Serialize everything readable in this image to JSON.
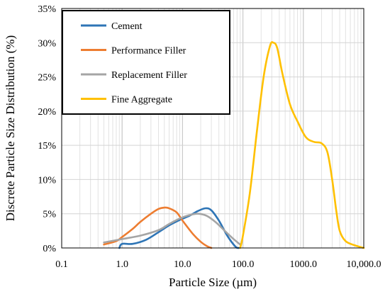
{
  "chart_data": {
    "type": "line",
    "title": "",
    "xlabel": "Particle Size (µm)",
    "ylabel": "Discrete Particle Size Distribution (%)",
    "x_scale": "log",
    "xlim": [
      0.1,
      10000
    ],
    "ylim": [
      0,
      35
    ],
    "grid": true,
    "legend_position": "top-left",
    "x_ticks": [
      {
        "value": 0.1,
        "label": "0.1"
      },
      {
        "value": 1,
        "label": "1.0"
      },
      {
        "value": 10,
        "label": "10.0"
      },
      {
        "value": 100,
        "label": "100.0"
      },
      {
        "value": 1000,
        "label": "1000.0"
      },
      {
        "value": 10000,
        "label": "10,000.0"
      }
    ],
    "y_ticks": [
      {
        "value": 0,
        "label": "0%"
      },
      {
        "value": 5,
        "label": "5%"
      },
      {
        "value": 10,
        "label": "10%"
      },
      {
        "value": 15,
        "label": "15%"
      },
      {
        "value": 20,
        "label": "20%"
      },
      {
        "value": 25,
        "label": "25%"
      },
      {
        "value": 30,
        "label": "30%"
      },
      {
        "value": 35,
        "label": "35%"
      }
    ],
    "series": [
      {
        "name": "Cement",
        "color": "#2e75b6",
        "points": [
          [
            0.9,
            0.0
          ],
          [
            1.0,
            0.6
          ],
          [
            1.5,
            0.6
          ],
          [
            2.5,
            1.2
          ],
          [
            4.0,
            2.3
          ],
          [
            6.0,
            3.3
          ],
          [
            9.0,
            4.1
          ],
          [
            13.0,
            4.7
          ],
          [
            18.0,
            5.4
          ],
          [
            24.0,
            5.8
          ],
          [
            30.0,
            5.5
          ],
          [
            40.0,
            4.0
          ],
          [
            55.0,
            1.8
          ],
          [
            75.0,
            0.2
          ],
          [
            85.0,
            0.0
          ]
        ]
      },
      {
        "name": "Performance Filler",
        "color": "#ed7d31",
        "points": [
          [
            0.5,
            0.5
          ],
          [
            0.8,
            1.0
          ],
          [
            1.0,
            1.6
          ],
          [
            1.5,
            2.8
          ],
          [
            2.0,
            3.8
          ],
          [
            3.0,
            5.0
          ],
          [
            4.0,
            5.7
          ],
          [
            5.0,
            5.9
          ],
          [
            6.0,
            5.8
          ],
          [
            8.0,
            5.2
          ],
          [
            10.0,
            4.0
          ],
          [
            15.0,
            2.0
          ],
          [
            20.0,
            0.9
          ],
          [
            25.0,
            0.3
          ],
          [
            30.0,
            0.0
          ]
        ]
      },
      {
        "name": "Replacement Filler",
        "color": "#a5a5a5",
        "points": [
          [
            0.5,
            0.8
          ],
          [
            1.0,
            1.3
          ],
          [
            2.0,
            1.8
          ],
          [
            4.0,
            2.6
          ],
          [
            6.0,
            3.5
          ],
          [
            9.0,
            4.3
          ],
          [
            13.0,
            4.8
          ],
          [
            18.0,
            5.0
          ],
          [
            25.0,
            4.7
          ],
          [
            35.0,
            3.8
          ],
          [
            50.0,
            2.5
          ],
          [
            70.0,
            1.3
          ],
          [
            90.0,
            0.5
          ]
        ]
      },
      {
        "name": "Fine Aggregate",
        "color": "#ffc000",
        "points": [
          [
            90.0,
            0.0
          ],
          [
            100.0,
            1.8
          ],
          [
            130.0,
            8.0
          ],
          [
            170.0,
            17.0
          ],
          [
            220.0,
            25.0
          ],
          [
            280.0,
            29.5
          ],
          [
            320.0,
            30.0
          ],
          [
            370.0,
            29.2
          ],
          [
            450.0,
            25.5
          ],
          [
            600.0,
            21.0
          ],
          [
            800.0,
            18.5
          ],
          [
            1100.0,
            16.2
          ],
          [
            1500.0,
            15.5
          ],
          [
            2000.0,
            15.3
          ],
          [
            2500.0,
            14.0
          ],
          [
            3000.0,
            10.0
          ],
          [
            3500.0,
            5.5
          ],
          [
            4000.0,
            2.5
          ],
          [
            5000.0,
            1.0
          ],
          [
            7000.0,
            0.4
          ],
          [
            10000.0,
            0.0
          ]
        ]
      }
    ]
  }
}
